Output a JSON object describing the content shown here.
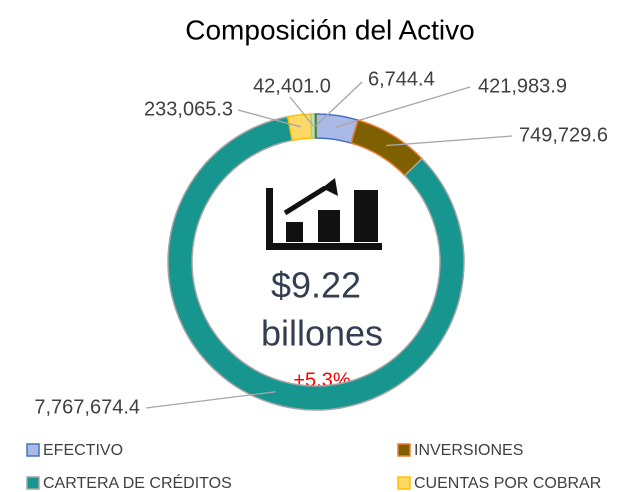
{
  "chart_data": {
    "type": "donut",
    "title": "Composición del Activo",
    "categories": [
      "EFECTIVO",
      "INVERSIONES",
      "CARTERA DE CRÉDITOS",
      "CUENTAS POR COBRAR",
      null,
      null
    ],
    "values": [
      421983.9,
      749729.6,
      7767674.4,
      233065.3,
      42401.0,
      6744.4
    ],
    "value_labels": [
      "421,983.9",
      "749,729.6",
      "7,767,674.4",
      "233,065.3",
      "42,401.0",
      "6,744.4"
    ],
    "colors": [
      "#aab9e6",
      "#7f6000",
      "#17958f",
      "#ffd966",
      "#c5e0b4",
      "#70ad47"
    ],
    "center_text": [
      "$9.22",
      "billones"
    ],
    "annotation": "+5.3%"
  }
}
